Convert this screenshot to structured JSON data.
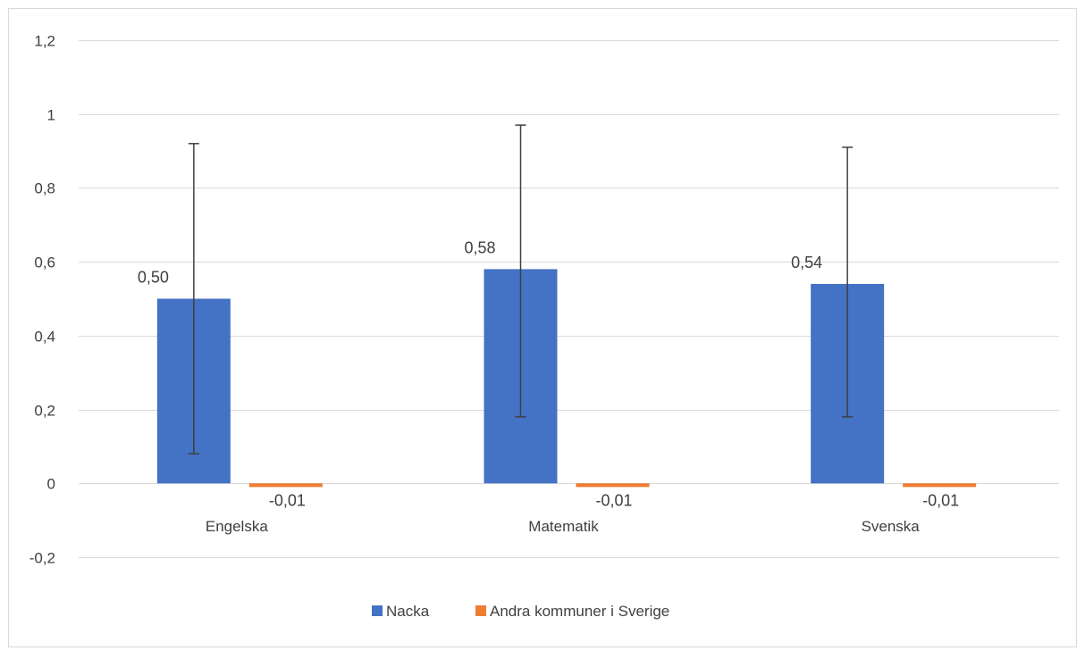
{
  "chart_data": {
    "type": "bar",
    "categories": [
      "Engelska",
      "Matematik",
      "Svenska"
    ],
    "series": [
      {
        "name": "Nacka",
        "color": "#4472C4",
        "values": [
          0.5,
          0.58,
          0.54
        ],
        "value_labels": [
          "0,50",
          "0,58",
          "0,54"
        ],
        "error_low": [
          0.08,
          0.18,
          0.18
        ],
        "error_high": [
          0.92,
          0.97,
          0.91
        ]
      },
      {
        "name": "Andra kommuner i Sverige",
        "color": "#ED7D31",
        "values": [
          -0.01,
          -0.01,
          -0.01
        ],
        "value_labels": [
          "-0,01",
          "-0,01",
          "-0,01"
        ]
      }
    ],
    "yticks": [
      "1,2",
      "1",
      "0,8",
      "0,6",
      "0,4",
      "0,2",
      "0",
      "-0,2"
    ],
    "ytick_values": [
      1.2,
      1.0,
      0.8,
      0.6,
      0.4,
      0.2,
      0.0,
      -0.2
    ],
    "ylim": [
      -0.2,
      1.2
    ],
    "grid": true,
    "legend_position": "bottom",
    "title": "",
    "xlabel": "",
    "ylabel": ""
  }
}
